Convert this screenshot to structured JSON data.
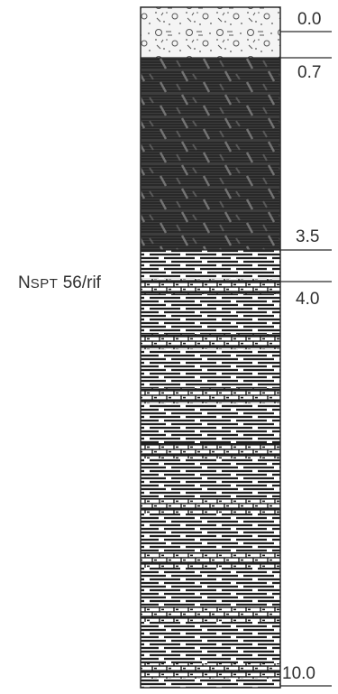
{
  "borehole": {
    "depths": [
      "0.0",
      "0.7",
      "3.5",
      "4.0",
      "10.0"
    ],
    "layers": [
      {
        "top": 0.0,
        "bottom": 0.7,
        "pattern": "gravelly-sand"
      },
      {
        "top": 0.7,
        "bottom": 3.5,
        "pattern": "dark-clay-silt"
      },
      {
        "top": 3.5,
        "bottom": 10.0,
        "pattern": "clay-with-limestone-bands"
      }
    ],
    "test_note": {
      "prefix": "N",
      "subscript": "SPT",
      "value": "56/rif"
    }
  },
  "colors": {
    "ink": "#2a2a2a",
    "dark_layer": "#3f3f3f",
    "paper": "#ffffff"
  }
}
